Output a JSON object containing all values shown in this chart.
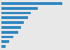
{
  "values": [
    100,
    60,
    48,
    43,
    37,
    32,
    27,
    20,
    13,
    7
  ],
  "bar_color": "#2e86c1",
  "background_color": "#e8e8e8",
  "plot_bg_color": "#e8e8e8",
  "figsize": [
    1.0,
    0.71
  ],
  "dpi": 100,
  "n_bars": 10,
  "bar_height": 0.55,
  "xlim_max": 110
}
